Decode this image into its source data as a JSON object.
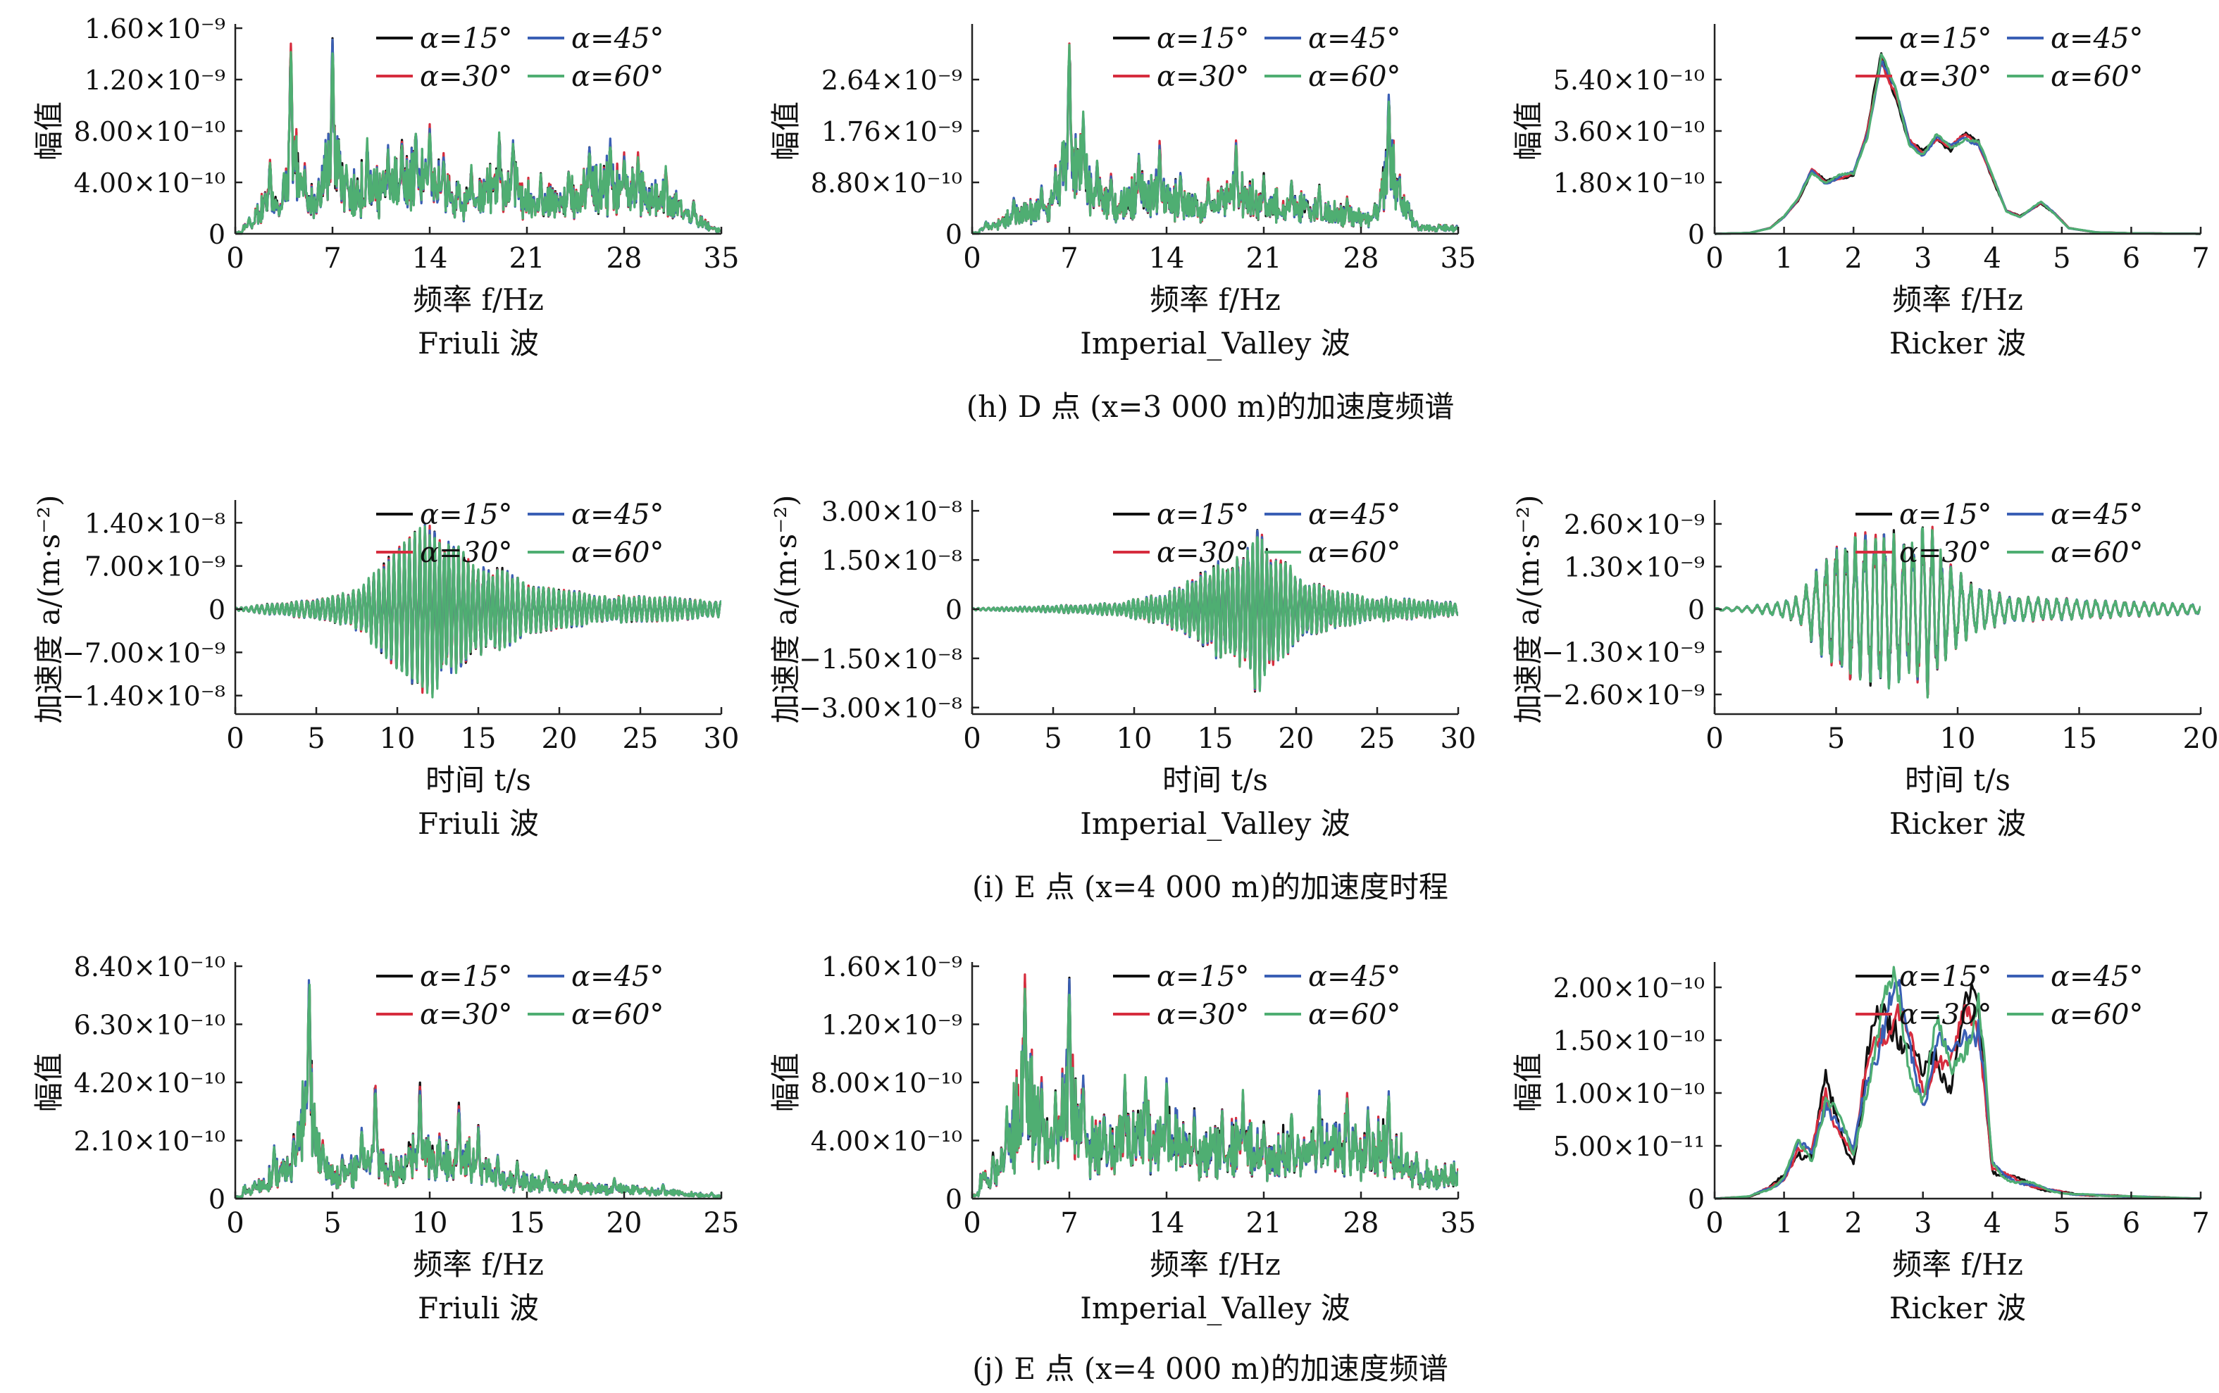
{
  "colors": {
    "a15": "#111111",
    "a30": "#d62d3e",
    "a45": "#3a5fb5",
    "a60": "#4fae72"
  },
  "rows": [
    {
      "caption": "(h) D 点 (x=3 000 m)的加速度频谱"
    },
    {
      "caption": "(i) E 点 (x=4 000 m)的加速度时程"
    },
    {
      "caption": "(j) E 点 (x=4 000 m)的加速度频谱"
    }
  ],
  "chart_data": [
    {
      "id": "h-friuli",
      "type": "line",
      "wave": "Friuli 波",
      "xlabel": "频率 f/Hz",
      "ylabel": "幅值",
      "xlim": [
        0,
        35
      ],
      "ylim": [
        0,
        1.6e-09
      ],
      "xticks": [
        0,
        7,
        14,
        21,
        28,
        35
      ],
      "yticks": [
        0,
        4e-10,
        8e-10,
        1.2e-09,
        1.6e-09
      ],
      "ytick_labels": [
        "0",
        "4.00×10⁻¹⁰",
        "8.00×10⁻¹⁰",
        "1.20×10⁻⁹",
        "1.60×10⁻⁹"
      ],
      "legend": "top-right",
      "series_names": [
        "α=15°",
        "α=30°",
        "α=45°",
        "α=60°"
      ],
      "peaks": [
        [
          1.0,
          1.2e-10
        ],
        [
          2.5,
          5.5e-10
        ],
        [
          3.5,
          4.5e-10
        ],
        [
          4.0,
          1.42e-09
        ],
        [
          5.0,
          5.2e-10
        ],
        [
          6.0,
          4e-10
        ],
        [
          7.0,
          1.45e-09
        ],
        [
          8.0,
          5e-10
        ],
        [
          9.5,
          7e-10
        ],
        [
          11.0,
          6.5e-10
        ],
        [
          12.0,
          7.2e-10
        ],
        [
          13.0,
          8e-10
        ],
        [
          14.0,
          8e-10
        ],
        [
          15.0,
          6e-10
        ],
        [
          17.0,
          5e-10
        ],
        [
          19.0,
          7.5e-10
        ],
        [
          20.0,
          7e-10
        ],
        [
          22.0,
          4.5e-10
        ],
        [
          24.0,
          5e-10
        ],
        [
          25.5,
          6.5e-10
        ],
        [
          27.0,
          7e-10
        ],
        [
          28.0,
          6e-10
        ],
        [
          29.0,
          6e-10
        ],
        [
          31.0,
          5e-10
        ],
        [
          33.0,
          2.5e-10
        ],
        [
          34.5,
          5e-11
        ]
      ],
      "seed": 11,
      "noise": 0.55
    },
    {
      "id": "h-imperial",
      "type": "line",
      "wave": "Imperial_Valley 波",
      "xlabel": "频率 f/Hz",
      "ylabel": "幅值",
      "xlim": [
        0,
        35
      ],
      "ylim": [
        0,
        3.52e-09
      ],
      "xticks": [
        0,
        7,
        14,
        21,
        28,
        35
      ],
      "yticks": [
        0,
        8.8e-10,
        1.76e-09,
        2.64e-09
      ],
      "ytick_labels": [
        "0",
        "8.80×10⁻¹⁰",
        "1.76×10⁻⁹",
        "2.64×10⁻⁹"
      ],
      "legend": "top-right",
      "series_names": [
        "α=15°",
        "α=30°",
        "α=45°",
        "α=60°"
      ],
      "peaks": [
        [
          1.0,
          2e-10
        ],
        [
          3.0,
          6e-10
        ],
        [
          5.0,
          8e-10
        ],
        [
          6.0,
          1.1e-09
        ],
        [
          7.0,
          3.15e-09
        ],
        [
          8.0,
          2e-09
        ],
        [
          9.0,
          1.2e-09
        ],
        [
          10.0,
          1e-09
        ],
        [
          12.0,
          1.3e-09
        ],
        [
          13.5,
          1.5e-09
        ],
        [
          15.0,
          1e-09
        ],
        [
          17.0,
          9e-10
        ],
        [
          19.0,
          1.5e-09
        ],
        [
          21.0,
          1e-09
        ],
        [
          23.0,
          9e-10
        ],
        [
          25.0,
          8e-10
        ],
        [
          27.0,
          6e-10
        ],
        [
          29.0,
          5e-10
        ],
        [
          30.0,
          2.3e-09
        ],
        [
          32.0,
          2e-10
        ]
      ],
      "seed": 23,
      "noise": 0.5
    },
    {
      "id": "h-ricker",
      "type": "line",
      "wave": "Ricker 波",
      "xlabel": "频率 f/Hz",
      "ylabel": "幅值",
      "xlim": [
        0,
        7
      ],
      "ylim": [
        0,
        7.2e-10
      ],
      "xticks": [
        0,
        1,
        2,
        3,
        4,
        5,
        6,
        7
      ],
      "yticks": [
        0,
        1.8e-10,
        3.6e-10,
        5.4e-10
      ],
      "ytick_labels": [
        "0",
        "1.80×10⁻¹⁰",
        "3.60×10⁻¹⁰",
        "5.40×10⁻¹⁰"
      ],
      "legend": "top-right",
      "series_names": [
        "α=15°",
        "α=30°",
        "α=45°",
        "α=60°"
      ],
      "smooth": [
        [
          0,
          0
        ],
        [
          0.5,
          3e-12
        ],
        [
          0.8,
          2e-11
        ],
        [
          1.0,
          6e-11
        ],
        [
          1.2,
          1.2e-10
        ],
        [
          1.4,
          2.2e-10
        ],
        [
          1.6,
          1.8e-10
        ],
        [
          1.8,
          2e-10
        ],
        [
          2.0,
          2.1e-10
        ],
        [
          2.2,
          3.5e-10
        ],
        [
          2.4,
          6.2e-10
        ],
        [
          2.6,
          5e-10
        ],
        [
          2.8,
          3.2e-10
        ],
        [
          3.0,
          2.8e-10
        ],
        [
          3.2,
          3.4e-10
        ],
        [
          3.4,
          3e-10
        ],
        [
          3.6,
          3.4e-10
        ],
        [
          3.8,
          3.2e-10
        ],
        [
          4.0,
          2e-10
        ],
        [
          4.2,
          8e-11
        ],
        [
          4.4,
          6e-11
        ],
        [
          4.7,
          1.1e-10
        ],
        [
          4.9,
          7e-11
        ],
        [
          5.1,
          2e-11
        ],
        [
          5.5,
          5e-12
        ],
        [
          6.0,
          2e-12
        ],
        [
          7.0,
          0
        ]
      ],
      "seed": 37
    },
    {
      "id": "i-friuli",
      "type": "line",
      "wave": "Friuli 波",
      "xlabel": "时间 t/s",
      "ylabel": "加速度 a/(m·s⁻²)",
      "xlim": [
        0,
        30
      ],
      "ylim": [
        -1.7e-08,
        1.7e-08
      ],
      "xticks": [
        0,
        5,
        10,
        15,
        20,
        25,
        30
      ],
      "yticks": [
        -1.4e-08,
        -7e-09,
        0,
        7e-09,
        1.4e-08
      ],
      "ytick_labels": [
        "−1.40×10⁻⁸",
        "−7.00×10⁻⁹",
        "0",
        "7.00×10⁻⁹",
        "1.40×10⁻⁸"
      ],
      "legend": "top-right",
      "series_names": [
        "α=15°",
        "α=30°",
        "α=45°",
        "α=60°"
      ],
      "envelope": [
        [
          0,
          2e-10
        ],
        [
          4,
          1.5e-09
        ],
        [
          7,
          3e-09
        ],
        [
          9,
          7e-09
        ],
        [
          11,
          1.2e-08
        ],
        [
          12.5,
          1.4e-08
        ],
        [
          14,
          9e-09
        ],
        [
          16,
          7e-09
        ],
        [
          18,
          4e-09
        ],
        [
          20,
          3e-09
        ],
        [
          25,
          2e-09
        ],
        [
          30,
          1.5e-09
        ]
      ],
      "seed": 51,
      "freq": 3.2
    },
    {
      "id": "i-imperial",
      "type": "line",
      "wave": "Imperial_Valley 波",
      "xlabel": "时间 t/s",
      "ylabel": "加速度 a/(m·s⁻²)",
      "xlim": [
        0,
        30
      ],
      "ylim": [
        -3.2e-08,
        3.2e-08
      ],
      "xticks": [
        0,
        5,
        10,
        15,
        20,
        25,
        30
      ],
      "yticks": [
        -3e-08,
        -1.5e-08,
        0,
        1.5e-08,
        3e-08
      ],
      "ytick_labels": [
        "−3.00×10⁻⁸",
        "−1.50×10⁻⁸",
        "0",
        "1.50×10⁻⁸",
        "3.00×10⁻⁸"
      ],
      "legend": "top-right",
      "series_names": [
        "α=15°",
        "α=30°",
        "α=45°",
        "α=60°"
      ],
      "envelope": [
        [
          0,
          3e-10
        ],
        [
          5,
          1e-09
        ],
        [
          9,
          2e-09
        ],
        [
          12,
          5e-09
        ],
        [
          14,
          1e-08
        ],
        [
          16,
          1.8e-08
        ],
        [
          17.5,
          2.5e-08
        ],
        [
          19,
          1.5e-08
        ],
        [
          21,
          8e-09
        ],
        [
          24,
          4e-09
        ],
        [
          27,
          3e-09
        ],
        [
          30,
          2e-09
        ]
      ],
      "seed": 67,
      "freq": 3.5
    },
    {
      "id": "i-ricker",
      "type": "line",
      "wave": "Ricker 波",
      "xlabel": "时间 t/s",
      "ylabel": "加速度 a/(m·s⁻²)",
      "xlim": [
        0,
        20
      ],
      "ylim": [
        -3.2e-09,
        3.2e-09
      ],
      "xticks": [
        0,
        5,
        10,
        15,
        20
      ],
      "yticks": [
        -2.6e-09,
        -1.3e-09,
        0,
        1.3e-09,
        2.6e-09
      ],
      "ytick_labels": [
        "−2.60×10⁻⁹",
        "−1.30×10⁻⁹",
        "0",
        "1.30×10⁻⁹",
        "2.60×10⁻⁹"
      ],
      "legend": "top-right",
      "series_names": [
        "α=15°",
        "α=30°",
        "α=45°",
        "α=60°"
      ],
      "envelope": [
        [
          0,
          3e-11
        ],
        [
          1.5,
          1e-10
        ],
        [
          2.5,
          2e-10
        ],
        [
          3.5,
          4e-10
        ],
        [
          4,
          1e-09
        ],
        [
          5,
          2e-09
        ],
        [
          6,
          2.2e-09
        ],
        [
          7,
          2.4e-09
        ],
        [
          8,
          2e-09
        ],
        [
          8.8,
          2.7e-09
        ],
        [
          9.5,
          1.5e-09
        ],
        [
          10.5,
          8e-10
        ],
        [
          12,
          4e-10
        ],
        [
          15,
          3e-10
        ],
        [
          18,
          2e-10
        ],
        [
          20,
          1.5e-10
        ]
      ],
      "seed": 79,
      "freq": 2.5
    },
    {
      "id": "j-friuli",
      "type": "line",
      "wave": "Friuli 波",
      "xlabel": "频率 f/Hz",
      "ylabel": "幅值",
      "xlim": [
        0,
        25
      ],
      "ylim": [
        0,
        8.4e-10
      ],
      "xticks": [
        0,
        5,
        10,
        15,
        20,
        25
      ],
      "yticks": [
        0,
        2.1e-10,
        4.2e-10,
        6.3e-10,
        8.4e-10
      ],
      "ytick_labels": [
        "0",
        "2.10×10⁻¹⁰",
        "4.20×10⁻¹⁰",
        "6.30×10⁻¹⁰",
        "8.40×10⁻¹⁰"
      ],
      "legend": "top-right",
      "series_names": [
        "α=15°",
        "α=30°",
        "α=45°",
        "α=60°"
      ],
      "peaks": [
        [
          1.0,
          6e-11
        ],
        [
          2.0,
          1.8e-10
        ],
        [
          3.0,
          2.2e-10
        ],
        [
          3.8,
          7.8e-10
        ],
        [
          4.5,
          2e-10
        ],
        [
          5.5,
          1.5e-10
        ],
        [
          6.5,
          2.5e-10
        ],
        [
          7.2,
          4e-10
        ],
        [
          8.0,
          1.5e-10
        ],
        [
          9.5,
          4e-10
        ],
        [
          10.5,
          2.2e-10
        ],
        [
          11.5,
          3.3e-10
        ],
        [
          12.5,
          2.5e-10
        ],
        [
          13.5,
          1.5e-10
        ],
        [
          14.5,
          1.3e-10
        ],
        [
          16.0,
          1e-10
        ],
        [
          17.5,
          8e-11
        ],
        [
          19.5,
          7e-11
        ],
        [
          22.0,
          5e-11
        ],
        [
          24.5,
          2e-11
        ]
      ],
      "seed": 83,
      "noise": 0.5
    },
    {
      "id": "j-imperial",
      "type": "line",
      "wave": "Imperial_Valley 波",
      "xlabel": "频率 f/Hz",
      "ylabel": "幅值",
      "xlim": [
        0,
        35
      ],
      "ylim": [
        0,
        1.6e-09
      ],
      "xticks": [
        0,
        7,
        14,
        21,
        28,
        35
      ],
      "yticks": [
        0,
        4e-10,
        8e-10,
        1.2e-09,
        1.6e-09
      ],
      "ytick_labels": [
        "0",
        "4.00×10⁻¹⁰",
        "8.00×10⁻¹⁰",
        "1.20×10⁻⁹",
        "1.60×10⁻⁹"
      ],
      "legend": "top-right",
      "series_names": [
        "α=15°",
        "α=30°",
        "α=45°",
        "α=60°"
      ],
      "peaks": [
        [
          1.5,
          3e-10
        ],
        [
          2.5,
          6e-10
        ],
        [
          3.8,
          1.45e-09
        ],
        [
          5.0,
          8e-10
        ],
        [
          6.0,
          7e-10
        ],
        [
          7.0,
          1.45e-09
        ],
        [
          8.0,
          8e-10
        ],
        [
          9.5,
          6e-10
        ],
        [
          11.0,
          8e-10
        ],
        [
          12.5,
          8e-10
        ],
        [
          14.0,
          8e-10
        ],
        [
          16.0,
          6e-10
        ],
        [
          18.0,
          6e-10
        ],
        [
          19.5,
          7e-10
        ],
        [
          21.0,
          5e-10
        ],
        [
          23.0,
          6e-10
        ],
        [
          25.0,
          7e-10
        ],
        [
          27.0,
          7e-10
        ],
        [
          28.5,
          6e-10
        ],
        [
          30.0,
          7e-10
        ],
        [
          32.0,
          3e-10
        ]
      ],
      "seed": 97,
      "noise": 0.55
    },
    {
      "id": "j-ricker",
      "type": "line",
      "wave": "Ricker 波",
      "xlabel": "频率 f/Hz",
      "ylabel": "幅值",
      "xlim": [
        0,
        7
      ],
      "ylim": [
        0,
        2.2e-10
      ],
      "xticks": [
        0,
        1,
        2,
        3,
        4,
        5,
        6,
        7
      ],
      "yticks": [
        0,
        5e-11,
        1e-10,
        1.5e-10,
        2e-10
      ],
      "ytick_labels": [
        "0",
        "5.00×10⁻¹¹",
        "1.00×10⁻¹⁰",
        "1.50×10⁻¹⁰",
        "2.00×10⁻¹⁰"
      ],
      "legend": "top-right",
      "series_names": [
        "α=15°",
        "α=30°",
        "α=45°",
        "α=60°"
      ],
      "smooth": [
        [
          0,
          0
        ],
        [
          0.5,
          2e-12
        ],
        [
          0.8,
          1e-11
        ],
        [
          1.0,
          2e-11
        ],
        [
          1.2,
          5e-11
        ],
        [
          1.4,
          4e-11
        ],
        [
          1.6,
          1e-10
        ],
        [
          1.8,
          7e-11
        ],
        [
          2.0,
          4e-11
        ],
        [
          2.2,
          1.2e-10
        ],
        [
          2.4,
          1.7e-10
        ],
        [
          2.6,
          1.9e-10
        ],
        [
          2.8,
          1.4e-10
        ],
        [
          3.0,
          1e-10
        ],
        [
          3.2,
          1.5e-10
        ],
        [
          3.4,
          1.2e-10
        ],
        [
          3.6,
          1.6e-10
        ],
        [
          3.8,
          1.8e-10
        ],
        [
          4.0,
          3e-11
        ],
        [
          4.2,
          2e-11
        ],
        [
          4.5,
          1.5e-11
        ],
        [
          4.8,
          8e-12
        ],
        [
          5.2,
          4e-12
        ],
        [
          6.0,
          2e-12
        ],
        [
          7.0,
          0
        ]
      ],
      "seed": 113,
      "jitter": 0.22
    }
  ]
}
